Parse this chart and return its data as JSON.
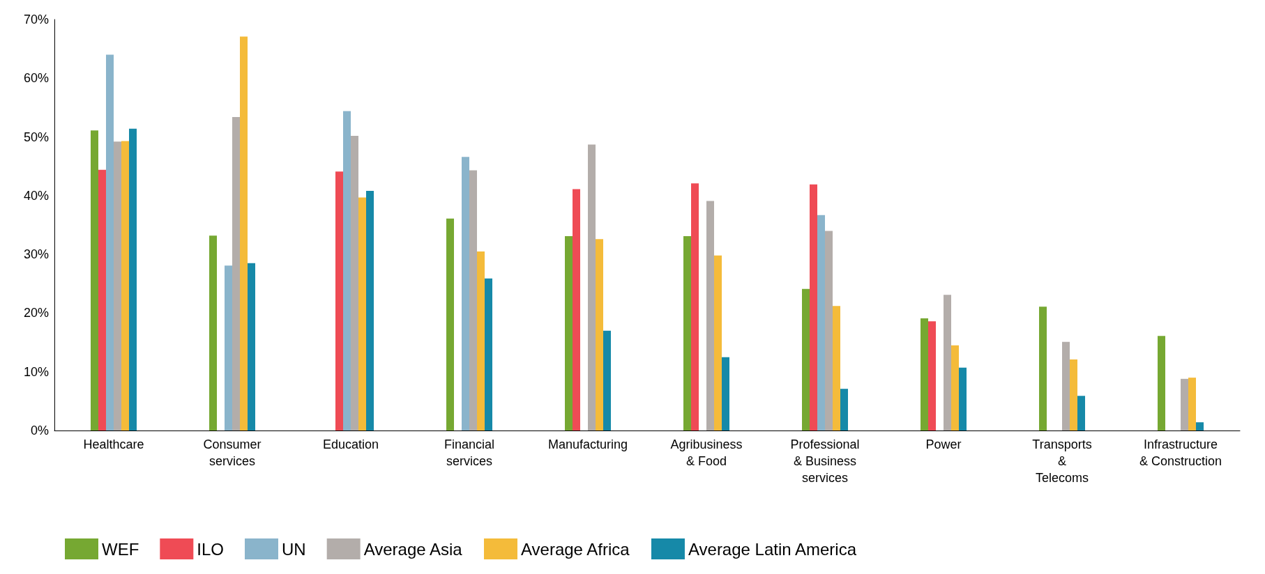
{
  "chart_data": {
    "type": "bar",
    "categories": [
      "Healthcare",
      "Consumer\nservices",
      "Education",
      "Financial\nservices",
      "Manufacturing",
      "Agribusiness\n& Food",
      "Professional\n& Business\nservices",
      "Power",
      "Transports\n&\nTelecoms",
      "Infrastructure\n& Construction"
    ],
    "series": [
      {
        "name": "WEF",
        "color": "#76a832",
        "values": [
          51.1,
          33.2,
          null,
          36.1,
          33.1,
          33.1,
          24.1,
          19.1,
          21.1,
          16.1
        ]
      },
      {
        "name": "ILO",
        "color": "#ef4b55",
        "values": [
          44.4,
          null,
          44.1,
          null,
          41.1,
          42.1,
          41.9,
          18.6,
          null,
          null
        ]
      },
      {
        "name": "UN",
        "color": "#8ab4cb",
        "values": [
          64,
          28.1,
          54.4,
          46.6,
          null,
          null,
          36.7,
          null,
          null,
          null
        ]
      },
      {
        "name": "Average Asia",
        "color": "#b3adaa",
        "values": [
          49.2,
          53.4,
          50.2,
          44.3,
          48.7,
          39.1,
          34,
          23.1,
          15.1,
          8.8
        ]
      },
      {
        "name": "Average Africa",
        "color": "#f4bb3a",
        "values": [
          49.3,
          67.1,
          39.7,
          30.5,
          32.6,
          29.8,
          21.2,
          14.5,
          12.1,
          9
        ]
      },
      {
        "name": "Average Latin America",
        "color": "#1689a8",
        "values": [
          51.4,
          28.5,
          40.8,
          25.9,
          17,
          12.5,
          7.1,
          10.7,
          5.9,
          1.4
        ]
      }
    ],
    "ylim": [
      0,
      70
    ],
    "yticks": [
      {
        "value": 0,
        "label": "0%"
      },
      {
        "value": 10,
        "label": "10%"
      },
      {
        "value": 20,
        "label": "20%"
      },
      {
        "value": 30,
        "label": "30%"
      },
      {
        "value": 40,
        "label": "40%"
      },
      {
        "value": 50,
        "label": "50%"
      },
      {
        "value": 60,
        "label": "60%"
      },
      {
        "value": 70,
        "label": "70%"
      }
    ],
    "grid": false,
    "legend": "bottom left"
  }
}
